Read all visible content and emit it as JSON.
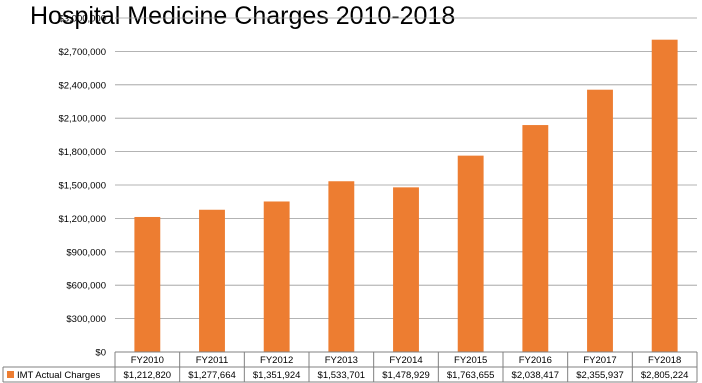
{
  "chart_data": {
    "type": "bar",
    "title": "Hospital Medicine Charges 2010-2018",
    "xlabel": "",
    "ylabel": "",
    "ylim": [
      0,
      3000000
    ],
    "y_ticks": [
      "$0",
      "$300,000",
      "$600,000",
      "$900,000",
      "$1,200,000",
      "$1,500,000",
      "$1,800,000",
      "$2,100,000",
      "$2,400,000",
      "$2,700,000",
      "$3,000,000"
    ],
    "categories": [
      "FY2010",
      "FY2011",
      "FY2012",
      "FY2013",
      "FY2014",
      "FY2015",
      "FY2016",
      "FY2017",
      "FY2018"
    ],
    "series": [
      {
        "name": "IMT Actual Charges",
        "color": "#ED7D31",
        "values": [
          1212820,
          1277664,
          1351924,
          1533701,
          1478929,
          1763655,
          2038417,
          2355937,
          2805224
        ],
        "labels": [
          "$1,212,820",
          "$1,277,664",
          "$1,351,924",
          "$1,533,701",
          "$1,478,929",
          "$1,763,655",
          "$2,038,417",
          "$2,355,937",
          "$2,805,224"
        ]
      }
    ],
    "grid": true,
    "data_table": true
  }
}
